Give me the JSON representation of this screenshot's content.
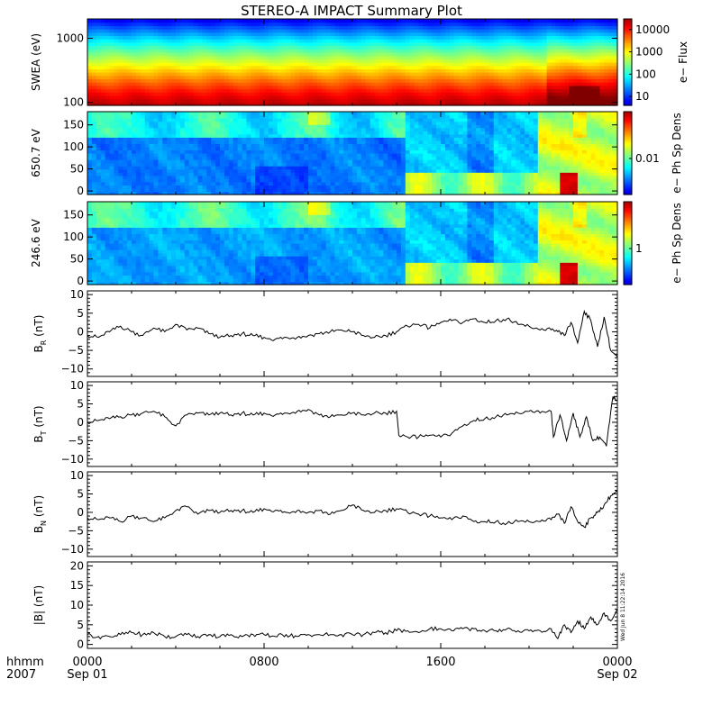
{
  "chart_data": {
    "type": "line",
    "title": "STEREO-A IMPACT Summary Plot",
    "x_axis": {
      "row_label_1": "hhmm",
      "row_label_2": "2007",
      "ticks": [
        {
          "hour": 0,
          "time": "0000",
          "date": "Sep 01"
        },
        {
          "hour": 8,
          "time": "0800",
          "date": ""
        },
        {
          "hour": 16,
          "time": "1600",
          "date": ""
        },
        {
          "hour": 24,
          "time": "0000",
          "date": "Sep 02"
        }
      ],
      "range_hours": [
        0,
        24
      ]
    },
    "timestamp": "Wed Jun  8 11:22:14 2016",
    "panels": [
      {
        "id": "swea",
        "kind": "spectrogram",
        "ylabel": "SWEA (eV)",
        "yscale": "log",
        "ylim": [
          90,
          2000
        ],
        "yticks": [
          {
            "v": 100,
            "label": "100"
          },
          {
            "v": 1000,
            "label": "1000"
          }
        ],
        "colorbar": {
          "label": "e− Flux",
          "scale": "log",
          "range": [
            4,
            30000
          ],
          "ticks": [
            {
              "v": 10,
              "label": "10"
            },
            {
              "v": 100,
              "label": "100"
            },
            {
              "v": 1000,
              "label": "1000"
            },
            {
              "v": 10000,
              "label": "10000"
            }
          ]
        }
      },
      {
        "id": "pad650",
        "kind": "spectrogram",
        "ylabel": "650.7 eV",
        "yscale": "linear",
        "ylim": [
          -8,
          180
        ],
        "yticks": [
          {
            "v": 0,
            "label": "0"
          },
          {
            "v": 50,
            "label": "50"
          },
          {
            "v": 100,
            "label": "100"
          },
          {
            "v": 150,
            "label": "150"
          }
        ],
        "colorbar": {
          "label": "e− Ph Sp Dens",
          "scale": "log",
          "ticks": [
            {
              "v": 0.01,
              "label": "0.01"
            }
          ]
        }
      },
      {
        "id": "pad246",
        "kind": "spectrogram",
        "ylabel": "246.6 eV",
        "yscale": "linear",
        "ylim": [
          -8,
          180
        ],
        "yticks": [
          {
            "v": 0,
            "label": "0"
          },
          {
            "v": 50,
            "label": "50"
          },
          {
            "v": 100,
            "label": "100"
          },
          {
            "v": 150,
            "label": "150"
          }
        ],
        "colorbar": {
          "label": "e− Ph Sp Dens",
          "scale": "log",
          "ticks": [
            {
              "v": 1,
              "label": "1"
            }
          ]
        }
      },
      {
        "id": "br",
        "kind": "line",
        "ylabel_main": "B",
        "ylabel_sub": "R",
        "ylabel_unit": " (nT)",
        "ylim": [
          -12,
          11
        ],
        "yticks": [
          {
            "v": -10,
            "label": "−10"
          },
          {
            "v": -5,
            "label": "−5"
          },
          {
            "v": 0,
            "label": "0"
          },
          {
            "v": 5,
            "label": "5"
          },
          {
            "v": 10,
            "label": "10"
          }
        ],
        "x": [
          0,
          0.5,
          1,
          1.5,
          2,
          2.5,
          3,
          3.5,
          4,
          4.5,
          5,
          5.5,
          6,
          6.5,
          7,
          7.5,
          8,
          8.5,
          9,
          9.5,
          10,
          10.5,
          11,
          11.5,
          12,
          12.5,
          13,
          13.5,
          14,
          14.5,
          15,
          15.5,
          16,
          16.5,
          17,
          17.5,
          18,
          18.5,
          19,
          19.5,
          20,
          20.5,
          21,
          21.3,
          21.6,
          21.9,
          22.2,
          22.5,
          22.8,
          23.1,
          23.4,
          23.7,
          24
        ],
        "values": [
          -1,
          -1.5,
          0,
          1.5,
          0,
          -1,
          1,
          0,
          2,
          0.5,
          1,
          -0.5,
          -1.5,
          -1,
          -0.5,
          -1,
          -1.5,
          -2,
          -1.5,
          -1.5,
          -1,
          -0.5,
          0,
          0.5,
          0,
          -1,
          -1.5,
          -1,
          0,
          1.5,
          2,
          1,
          2.5,
          3,
          2.5,
          3.5,
          2.5,
          3,
          3.5,
          2,
          1.5,
          0.5,
          0.5,
          0,
          -1,
          2.5,
          -3,
          5.5,
          3,
          -4,
          4,
          -5,
          -7
        ]
      },
      {
        "id": "bt",
        "kind": "line",
        "ylabel_main": "B",
        "ylabel_sub": "T",
        "ylabel_unit": " (nT)",
        "ylim": [
          -12,
          11
        ],
        "yticks": [
          {
            "v": -10,
            "label": "−10"
          },
          {
            "v": -5,
            "label": "−5"
          },
          {
            "v": 0,
            "label": "0"
          },
          {
            "v": 5,
            "label": "5"
          },
          {
            "v": 10,
            "label": "10"
          }
        ],
        "x": [
          0,
          0.5,
          1,
          1.5,
          2,
          2.5,
          3,
          3.5,
          4,
          4.5,
          5,
          5.5,
          6,
          6.5,
          7,
          7.5,
          8,
          8.5,
          9,
          9.5,
          10,
          10.5,
          11,
          11.5,
          12,
          12.5,
          13,
          13.5,
          14,
          14.1,
          14.5,
          15,
          15.5,
          16,
          16.5,
          17,
          17.5,
          18,
          18.5,
          19,
          19.5,
          20,
          20.5,
          21,
          21.1,
          21.4,
          21.7,
          22,
          22.3,
          22.6,
          22.9,
          23.2,
          23.5,
          23.8,
          24
        ],
        "values": [
          0,
          0.5,
          1,
          1.5,
          2,
          2.5,
          3,
          1.5,
          -1,
          2,
          2.5,
          2,
          2.5,
          2,
          2.5,
          2,
          2.5,
          2,
          2.5,
          3,
          3.5,
          2,
          1.5,
          2,
          2.5,
          2,
          2.5,
          2.5,
          3,
          -3.5,
          -4,
          -4,
          -3.5,
          -4,
          -3,
          -1,
          0.5,
          1,
          1.5,
          2,
          2.5,
          3,
          2.5,
          3,
          -4,
          2,
          -5,
          2.5,
          -4,
          1.5,
          -5,
          -4,
          -6.5,
          7,
          6
        ]
      },
      {
        "id": "bn",
        "kind": "line",
        "ylabel_main": "B",
        "ylabel_sub": "N",
        "ylabel_unit": " (nT)",
        "ylim": [
          -12,
          11
        ],
        "yticks": [
          {
            "v": -10,
            "label": "−10"
          },
          {
            "v": -5,
            "label": "−5"
          },
          {
            "v": 0,
            "label": "0"
          },
          {
            "v": 5,
            "label": "5"
          },
          {
            "v": 10,
            "label": "10"
          }
        ],
        "x": [
          0,
          0.5,
          1,
          1.5,
          2,
          2.5,
          3,
          3.5,
          4,
          4.5,
          5,
          5.5,
          6,
          6.5,
          7,
          7.5,
          8,
          8.5,
          9,
          9.5,
          10,
          10.5,
          11,
          11.5,
          12,
          12.5,
          13,
          13.5,
          14,
          14.5,
          15,
          15.5,
          16,
          16.5,
          17,
          17.5,
          18,
          18.5,
          19,
          19.5,
          20,
          20.5,
          21,
          21.3,
          21.6,
          21.9,
          22.2,
          22.5,
          22.8,
          23.1,
          23.4,
          23.7,
          24
        ],
        "values": [
          -1.5,
          -2,
          -1.5,
          -2.5,
          -1,
          -1.5,
          -2.5,
          -1.5,
          0.5,
          1.5,
          -0.5,
          0.5,
          0,
          0.5,
          0.5,
          0,
          1,
          0.5,
          0,
          0.5,
          0,
          0.5,
          -0.5,
          0.5,
          2,
          0.5,
          0,
          0.5,
          1,
          0,
          -0.5,
          -1,
          -1.5,
          -2,
          -1,
          -2.5,
          -2.5,
          -2.5,
          -3,
          -2.5,
          -2.5,
          -2.5,
          -2,
          -0.5,
          -3,
          1.5,
          -2.5,
          -4,
          -1.5,
          0,
          2,
          4.5,
          5.5
        ]
      },
      {
        "id": "bmag",
        "kind": "line",
        "ylabel": "|B| (nT)",
        "ylim": [
          -1,
          21
        ],
        "yticks": [
          {
            "v": 0,
            "label": "0"
          },
          {
            "v": 5,
            "label": "5"
          },
          {
            "v": 10,
            "label": "10"
          },
          {
            "v": 15,
            "label": "15"
          },
          {
            "v": 20,
            "label": "20"
          }
        ],
        "x": [
          0,
          0.5,
          1,
          1.5,
          2,
          2.5,
          3,
          3.5,
          4,
          4.5,
          5,
          5.5,
          6,
          6.5,
          7,
          7.5,
          8,
          8.5,
          9,
          9.5,
          10,
          10.5,
          11,
          11.5,
          12,
          12.5,
          13,
          13.5,
          14,
          14.5,
          15,
          15.5,
          16,
          16.5,
          17,
          17.5,
          18,
          18.5,
          19,
          19.5,
          20,
          20.5,
          21,
          21.3,
          21.6,
          21.9,
          22.2,
          22.5,
          22.8,
          23.1,
          23.4,
          23.7,
          24
        ],
        "values": [
          2.5,
          2,
          2,
          2.5,
          3,
          2.5,
          3,
          2,
          2,
          2.5,
          2,
          2.5,
          2,
          2.5,
          2,
          2.5,
          2.5,
          2,
          2.5,
          2,
          2.5,
          2.5,
          2.5,
          2.5,
          2.5,
          2.5,
          3,
          3,
          3.5,
          3.5,
          3,
          4,
          4,
          3.5,
          4,
          4,
          3.5,
          3.5,
          4,
          3.5,
          3.5,
          3.5,
          4,
          1.5,
          5,
          3,
          6,
          4,
          7,
          5,
          8,
          6,
          9
        ]
      }
    ],
    "colors": {
      "line": "#000000",
      "frame": "#000000"
    }
  }
}
